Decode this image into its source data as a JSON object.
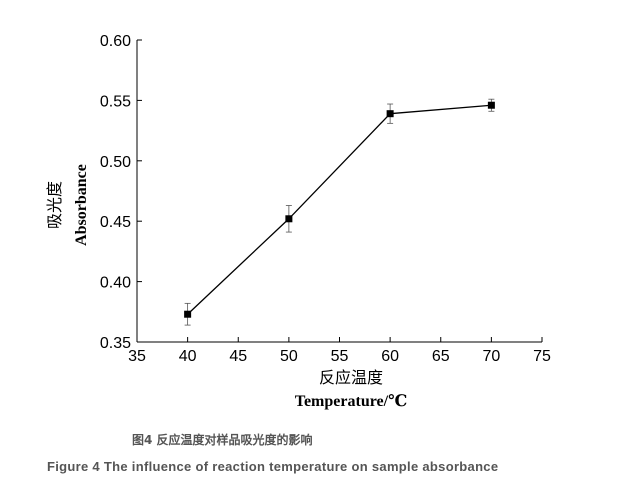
{
  "chart_data": {
    "type": "line",
    "x": [
      40,
      50,
      60,
      70
    ],
    "series": [
      {
        "values": [
          0.373,
          0.452,
          0.539,
          0.546
        ],
        "errors": [
          0.009,
          0.011,
          0.008,
          0.005
        ],
        "marker": "square",
        "color": "#000000"
      }
    ],
    "xlim": [
      35,
      75
    ],
    "ylim": [
      0.35,
      0.6
    ],
    "xticks": [
      "35",
      "40",
      "45",
      "50",
      "55",
      "60",
      "65",
      "70",
      "75"
    ],
    "yticks": [
      "0.35",
      "0.40",
      "0.45",
      "0.50",
      "0.55",
      "0.60"
    ],
    "xlabel_cn": "反应温度",
    "xlabel_en": "Temperature/℃",
    "ylabel_cn": "吸光度",
    "ylabel_en": "Absorbance",
    "grid": false,
    "legend": "none"
  },
  "captions": {
    "cn": "图4 反应温度对样品吸光度的影响",
    "en": "Figure 4 The influence of reaction temperature on sample absorbance"
  }
}
